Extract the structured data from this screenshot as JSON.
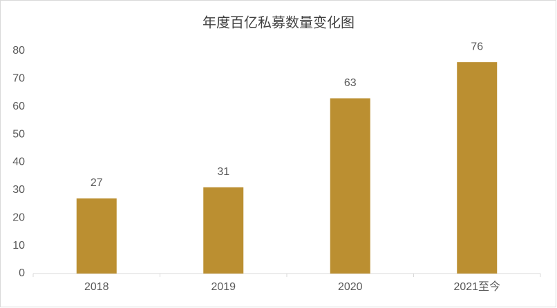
{
  "chart_data": {
    "type": "bar",
    "title": "年度百亿私募数量变化图",
    "categories": [
      "2018",
      "2019",
      "2020",
      "2021至今"
    ],
    "values": [
      27,
      31,
      63,
      76
    ],
    "color": "#bb8f31",
    "ylim": [
      0,
      80
    ],
    "yticks": [
      0,
      10,
      20,
      30,
      40,
      50,
      60,
      70,
      80
    ],
    "grid": false,
    "data_labels": true
  }
}
